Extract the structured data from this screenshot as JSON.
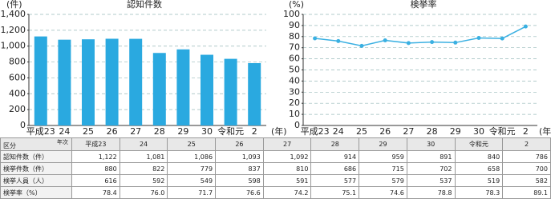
{
  "chart_data": [
    {
      "type": "bar",
      "title": "認知件数",
      "y_label": "(件)",
      "x_label": "(年)",
      "categories": [
        "平成23",
        "24",
        "25",
        "26",
        "27",
        "28",
        "29",
        "30",
        "令和元",
        "2"
      ],
      "values": [
        1122,
        1081,
        1086,
        1093,
        1092,
        914,
        959,
        891,
        840,
        786
      ],
      "color": "#2aa9e0",
      "ylim": [
        0,
        1400
      ],
      "yticks": [
        0,
        200,
        400,
        600,
        800,
        {
          "value": 1000,
          "label": "1,000"
        },
        {
          "value": 1200,
          "label": "1,200"
        },
        {
          "value": 1400,
          "label": "1,400"
        }
      ],
      "grid": true
    },
    {
      "type": "line",
      "title": "検挙率",
      "y_label": "(%)",
      "x_label": "(年)",
      "categories": [
        "平成23",
        "24",
        "25",
        "26",
        "27",
        "28",
        "29",
        "30",
        "令和元",
        "2"
      ],
      "values": [
        78.4,
        76.0,
        71.7,
        76.6,
        74.2,
        75.1,
        74.6,
        78.8,
        78.3,
        89.1
      ],
      "color": "#3ab0e2",
      "ylim": [
        0,
        100
      ],
      "yticks": [
        0,
        10,
        20,
        30,
        40,
        50,
        60,
        70,
        80,
        90,
        100
      ],
      "grid": true
    }
  ],
  "table": {
    "corner_top": "年次",
    "corner_bottom": "区分",
    "columns": [
      "平成23",
      "24",
      "25",
      "26",
      "27",
      "28",
      "29",
      "30",
      "令和元",
      "2"
    ],
    "rows": [
      {
        "label": "認知件数（件）",
        "cells": [
          "1,122",
          "1,081",
          "1,086",
          "1,093",
          "1,092",
          "914",
          "959",
          "891",
          "840",
          "786"
        ]
      },
      {
        "label": "検挙件数（件）",
        "cells": [
          "880",
          "822",
          "779",
          "837",
          "810",
          "686",
          "715",
          "702",
          "658",
          "700"
        ]
      },
      {
        "label": "検挙人員（人）",
        "cells": [
          "616",
          "592",
          "549",
          "598",
          "591",
          "577",
          "579",
          "537",
          "519",
          "582"
        ]
      },
      {
        "label": "検挙率（%）",
        "cells": [
          "78.4",
          "76.0",
          "71.7",
          "76.6",
          "74.2",
          "75.1",
          "74.6",
          "78.8",
          "78.3",
          "89.1"
        ]
      }
    ]
  }
}
